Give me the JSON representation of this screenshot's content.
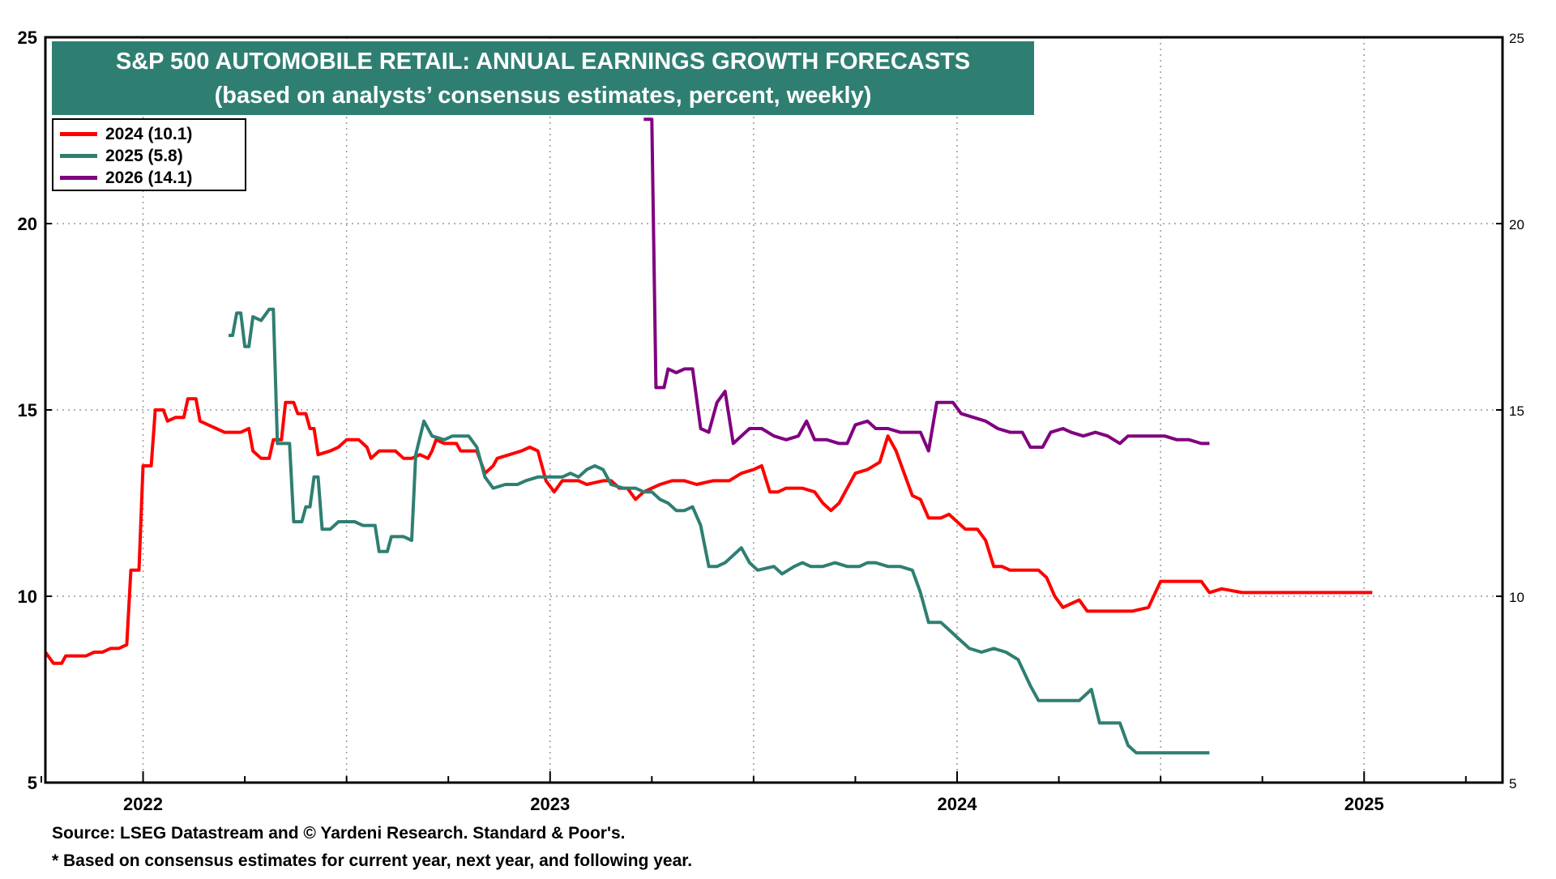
{
  "chart_data": {
    "type": "line",
    "title": "S&P 500 AUTOMOBILE RETAIL: ANNUAL EARNINGS GROWTH FORECASTS",
    "subtitle": "(based on analysts’ consensus estimates, percent, weekly)",
    "xlabel": "",
    "ylabel": "",
    "ylim": [
      5,
      25
    ],
    "xlim": [
      2021.76,
      2025.34
    ],
    "yticks": [
      5,
      10,
      15,
      20,
      25
    ],
    "right_yticks": [
      5,
      10,
      15,
      20,
      25
    ],
    "xticks": [
      {
        "label": "2022",
        "x": 2022.0
      },
      {
        "label": "2023",
        "x": 2023.0
      },
      {
        "label": "2024",
        "x": 2024.0
      },
      {
        "label": "2025",
        "x": 2025.0
      }
    ],
    "grid": true,
    "legend_position": "top-left",
    "series": [
      {
        "name": "2024 (10.1)",
        "color": "#ff0000",
        "points": [
          [
            2021.76,
            8.5
          ],
          [
            2021.78,
            8.2
          ],
          [
            2021.8,
            8.2
          ],
          [
            2021.81,
            8.4
          ],
          [
            2021.84,
            8.4
          ],
          [
            2021.86,
            8.4
          ],
          [
            2021.88,
            8.5
          ],
          [
            2021.9,
            8.5
          ],
          [
            2021.92,
            8.6
          ],
          [
            2021.94,
            8.6
          ],
          [
            2021.96,
            8.7
          ],
          [
            2021.97,
            10.7
          ],
          [
            2021.99,
            10.7
          ],
          [
            2022.0,
            13.5
          ],
          [
            2022.02,
            13.5
          ],
          [
            2022.03,
            15.0
          ],
          [
            2022.05,
            15.0
          ],
          [
            2022.06,
            14.7
          ],
          [
            2022.08,
            14.8
          ],
          [
            2022.1,
            14.8
          ],
          [
            2022.11,
            15.3
          ],
          [
            2022.13,
            15.3
          ],
          [
            2022.14,
            14.7
          ],
          [
            2022.16,
            14.6
          ],
          [
            2022.18,
            14.5
          ],
          [
            2022.2,
            14.4
          ],
          [
            2022.24,
            14.4
          ],
          [
            2022.26,
            14.5
          ],
          [
            2022.27,
            13.9
          ],
          [
            2022.29,
            13.7
          ],
          [
            2022.31,
            13.7
          ],
          [
            2022.32,
            14.2
          ],
          [
            2022.34,
            14.2
          ],
          [
            2022.35,
            15.2
          ],
          [
            2022.37,
            15.2
          ],
          [
            2022.38,
            14.9
          ],
          [
            2022.4,
            14.9
          ],
          [
            2022.41,
            14.5
          ],
          [
            2022.42,
            14.5
          ],
          [
            2022.43,
            13.8
          ],
          [
            2022.46,
            13.9
          ],
          [
            2022.48,
            14.0
          ],
          [
            2022.5,
            14.2
          ],
          [
            2022.53,
            14.2
          ],
          [
            2022.55,
            14.0
          ],
          [
            2022.56,
            13.7
          ],
          [
            2022.58,
            13.9
          ],
          [
            2022.62,
            13.9
          ],
          [
            2022.64,
            13.7
          ],
          [
            2022.66,
            13.7
          ],
          [
            2022.68,
            13.8
          ],
          [
            2022.7,
            13.7
          ],
          [
            2022.71,
            13.9
          ],
          [
            2022.72,
            14.2
          ],
          [
            2022.74,
            14.1
          ],
          [
            2022.77,
            14.1
          ],
          [
            2022.78,
            13.9
          ],
          [
            2022.82,
            13.9
          ],
          [
            2022.84,
            13.3
          ],
          [
            2022.86,
            13.5
          ],
          [
            2022.87,
            13.7
          ],
          [
            2022.9,
            13.8
          ],
          [
            2022.93,
            13.9
          ],
          [
            2022.95,
            14.0
          ],
          [
            2022.97,
            13.9
          ],
          [
            2022.99,
            13.1
          ],
          [
            2023.01,
            12.8
          ],
          [
            2023.03,
            13.1
          ],
          [
            2023.07,
            13.1
          ],
          [
            2023.09,
            13.0
          ],
          [
            2023.13,
            13.1
          ],
          [
            2023.15,
            13.1
          ],
          [
            2023.17,
            12.9
          ],
          [
            2023.19,
            12.9
          ],
          [
            2023.21,
            12.6
          ],
          [
            2023.23,
            12.8
          ],
          [
            2023.25,
            12.9
          ],
          [
            2023.27,
            13.0
          ],
          [
            2023.3,
            13.1
          ],
          [
            2023.33,
            13.1
          ],
          [
            2023.36,
            13.0
          ],
          [
            2023.4,
            13.1
          ],
          [
            2023.44,
            13.1
          ],
          [
            2023.47,
            13.3
          ],
          [
            2023.5,
            13.4
          ],
          [
            2023.52,
            13.5
          ],
          [
            2023.54,
            12.8
          ],
          [
            2023.56,
            12.8
          ],
          [
            2023.58,
            12.9
          ],
          [
            2023.62,
            12.9
          ],
          [
            2023.65,
            12.8
          ],
          [
            2023.67,
            12.5
          ],
          [
            2023.69,
            12.3
          ],
          [
            2023.71,
            12.5
          ],
          [
            2023.73,
            12.9
          ],
          [
            2023.75,
            13.3
          ],
          [
            2023.78,
            13.4
          ],
          [
            2023.81,
            13.6
          ],
          [
            2023.83,
            14.3
          ],
          [
            2023.85,
            13.9
          ],
          [
            2023.87,
            13.3
          ],
          [
            2023.89,
            12.7
          ],
          [
            2023.91,
            12.6
          ],
          [
            2023.93,
            12.1
          ],
          [
            2023.96,
            12.1
          ],
          [
            2023.98,
            12.2
          ],
          [
            2024.0,
            12.0
          ],
          [
            2024.02,
            11.8
          ],
          [
            2024.05,
            11.8
          ],
          [
            2024.07,
            11.5
          ],
          [
            2024.09,
            10.8
          ],
          [
            2024.11,
            10.8
          ],
          [
            2024.13,
            10.7
          ],
          [
            2024.15,
            10.7
          ],
          [
            2024.2,
            10.7
          ],
          [
            2024.22,
            10.5
          ],
          [
            2024.24,
            10.0
          ],
          [
            2024.26,
            9.7
          ],
          [
            2024.28,
            9.8
          ],
          [
            2024.3,
            9.9
          ],
          [
            2024.32,
            9.6
          ],
          [
            2024.35,
            9.6
          ],
          [
            2024.4,
            9.6
          ],
          [
            2024.43,
            9.6
          ],
          [
            2024.47,
            9.7
          ],
          [
            2024.5,
            10.4
          ],
          [
            2024.55,
            10.4
          ],
          [
            2024.6,
            10.4
          ],
          [
            2024.62,
            10.1
          ],
          [
            2024.65,
            10.2
          ],
          [
            2024.7,
            10.1
          ],
          [
            2024.8,
            10.1
          ],
          [
            2024.9,
            10.1
          ],
          [
            2025.0,
            10.1
          ],
          [
            2025.02,
            10.1
          ]
        ]
      },
      {
        "name": "2025 (5.8)",
        "color": "#2e7f72",
        "points": [
          [
            2022.21,
            17.0
          ],
          [
            2022.22,
            17.0
          ],
          [
            2022.23,
            17.6
          ],
          [
            2022.24,
            17.6
          ],
          [
            2022.25,
            16.7
          ],
          [
            2022.26,
            16.7
          ],
          [
            2022.27,
            17.5
          ],
          [
            2022.29,
            17.4
          ],
          [
            2022.31,
            17.7
          ],
          [
            2022.32,
            17.7
          ],
          [
            2022.33,
            14.1
          ],
          [
            2022.36,
            14.1
          ],
          [
            2022.37,
            12.0
          ],
          [
            2022.39,
            12.0
          ],
          [
            2022.4,
            12.4
          ],
          [
            2022.41,
            12.4
          ],
          [
            2022.42,
            13.2
          ],
          [
            2022.43,
            13.2
          ],
          [
            2022.44,
            11.8
          ],
          [
            2022.46,
            11.8
          ],
          [
            2022.48,
            12.0
          ],
          [
            2022.52,
            12.0
          ],
          [
            2022.54,
            11.9
          ],
          [
            2022.57,
            11.9
          ],
          [
            2022.58,
            11.2
          ],
          [
            2022.6,
            11.2
          ],
          [
            2022.61,
            11.6
          ],
          [
            2022.64,
            11.6
          ],
          [
            2022.66,
            11.5
          ],
          [
            2022.67,
            13.8
          ],
          [
            2022.69,
            14.7
          ],
          [
            2022.71,
            14.3
          ],
          [
            2022.74,
            14.2
          ],
          [
            2022.76,
            14.3
          ],
          [
            2022.8,
            14.3
          ],
          [
            2022.82,
            14.0
          ],
          [
            2022.84,
            13.2
          ],
          [
            2022.86,
            12.9
          ],
          [
            2022.89,
            13.0
          ],
          [
            2022.92,
            13.0
          ],
          [
            2022.94,
            13.1
          ],
          [
            2022.97,
            13.2
          ],
          [
            2023.01,
            13.2
          ],
          [
            2023.03,
            13.2
          ],
          [
            2023.05,
            13.3
          ],
          [
            2023.07,
            13.2
          ],
          [
            2023.09,
            13.4
          ],
          [
            2023.11,
            13.5
          ],
          [
            2023.13,
            13.4
          ],
          [
            2023.15,
            13.0
          ],
          [
            2023.18,
            12.9
          ],
          [
            2023.21,
            12.9
          ],
          [
            2023.23,
            12.8
          ],
          [
            2023.25,
            12.8
          ],
          [
            2023.27,
            12.6
          ],
          [
            2023.29,
            12.5
          ],
          [
            2023.31,
            12.3
          ],
          [
            2023.33,
            12.3
          ],
          [
            2023.35,
            12.4
          ],
          [
            2023.37,
            11.9
          ],
          [
            2023.39,
            10.8
          ],
          [
            2023.41,
            10.8
          ],
          [
            2023.43,
            10.9
          ],
          [
            2023.47,
            11.3
          ],
          [
            2023.49,
            10.9
          ],
          [
            2023.51,
            10.7
          ],
          [
            2023.55,
            10.8
          ],
          [
            2023.57,
            10.6
          ],
          [
            2023.6,
            10.8
          ],
          [
            2023.62,
            10.9
          ],
          [
            2023.64,
            10.8
          ],
          [
            2023.67,
            10.8
          ],
          [
            2023.7,
            10.9
          ],
          [
            2023.73,
            10.8
          ],
          [
            2023.76,
            10.8
          ],
          [
            2023.78,
            10.9
          ],
          [
            2023.8,
            10.9
          ],
          [
            2023.83,
            10.8
          ],
          [
            2023.86,
            10.8
          ],
          [
            2023.89,
            10.7
          ],
          [
            2023.91,
            10.1
          ],
          [
            2023.93,
            9.3
          ],
          [
            2023.96,
            9.3
          ],
          [
            2023.98,
            9.1
          ],
          [
            2024.0,
            8.9
          ],
          [
            2024.03,
            8.6
          ],
          [
            2024.06,
            8.5
          ],
          [
            2024.09,
            8.6
          ],
          [
            2024.12,
            8.5
          ],
          [
            2024.15,
            8.3
          ],
          [
            2024.18,
            7.6
          ],
          [
            2024.2,
            7.2
          ],
          [
            2024.25,
            7.2
          ],
          [
            2024.3,
            7.2
          ],
          [
            2024.33,
            7.5
          ],
          [
            2024.35,
            6.6
          ],
          [
            2024.4,
            6.6
          ],
          [
            2024.42,
            6.0
          ],
          [
            2024.44,
            5.8
          ],
          [
            2024.5,
            5.8
          ],
          [
            2024.55,
            5.8
          ],
          [
            2024.6,
            5.8
          ],
          [
            2024.62,
            5.8
          ]
        ]
      },
      {
        "name": "2026 (14.1)",
        "color": "#800080",
        "points": [
          [
            2023.23,
            22.8
          ],
          [
            2023.25,
            22.8
          ],
          [
            2023.26,
            15.6
          ],
          [
            2023.28,
            15.6
          ],
          [
            2023.29,
            16.1
          ],
          [
            2023.31,
            16.0
          ],
          [
            2023.33,
            16.1
          ],
          [
            2023.35,
            16.1
          ],
          [
            2023.37,
            14.5
          ],
          [
            2023.39,
            14.4
          ],
          [
            2023.41,
            15.2
          ],
          [
            2023.43,
            15.5
          ],
          [
            2023.45,
            14.1
          ],
          [
            2023.47,
            14.3
          ],
          [
            2023.49,
            14.5
          ],
          [
            2023.52,
            14.5
          ],
          [
            2023.55,
            14.3
          ],
          [
            2023.58,
            14.2
          ],
          [
            2023.61,
            14.3
          ],
          [
            2023.63,
            14.7
          ],
          [
            2023.65,
            14.2
          ],
          [
            2023.68,
            14.2
          ],
          [
            2023.71,
            14.1
          ],
          [
            2023.73,
            14.1
          ],
          [
            2023.75,
            14.6
          ],
          [
            2023.78,
            14.7
          ],
          [
            2023.8,
            14.5
          ],
          [
            2023.83,
            14.5
          ],
          [
            2023.86,
            14.4
          ],
          [
            2023.89,
            14.4
          ],
          [
            2023.91,
            14.4
          ],
          [
            2023.93,
            13.9
          ],
          [
            2023.95,
            15.2
          ],
          [
            2023.99,
            15.2
          ],
          [
            2024.01,
            14.9
          ],
          [
            2024.04,
            14.8
          ],
          [
            2024.07,
            14.7
          ],
          [
            2024.1,
            14.5
          ],
          [
            2024.13,
            14.4
          ],
          [
            2024.16,
            14.4
          ],
          [
            2024.18,
            14.0
          ],
          [
            2024.21,
            14.0
          ],
          [
            2024.23,
            14.4
          ],
          [
            2024.26,
            14.5
          ],
          [
            2024.28,
            14.4
          ],
          [
            2024.31,
            14.3
          ],
          [
            2024.34,
            14.4
          ],
          [
            2024.37,
            14.3
          ],
          [
            2024.4,
            14.1
          ],
          [
            2024.42,
            14.3
          ],
          [
            2024.47,
            14.3
          ],
          [
            2024.51,
            14.3
          ],
          [
            2024.54,
            14.2
          ],
          [
            2024.57,
            14.2
          ],
          [
            2024.6,
            14.1
          ],
          [
            2024.62,
            14.1
          ]
        ]
      }
    ]
  },
  "source_note": "Source: LSEG Datastream and © Yardeni Research. Standard & Poor's.",
  "footnote": "* Based on consensus estimates for current year, next year, and following year."
}
